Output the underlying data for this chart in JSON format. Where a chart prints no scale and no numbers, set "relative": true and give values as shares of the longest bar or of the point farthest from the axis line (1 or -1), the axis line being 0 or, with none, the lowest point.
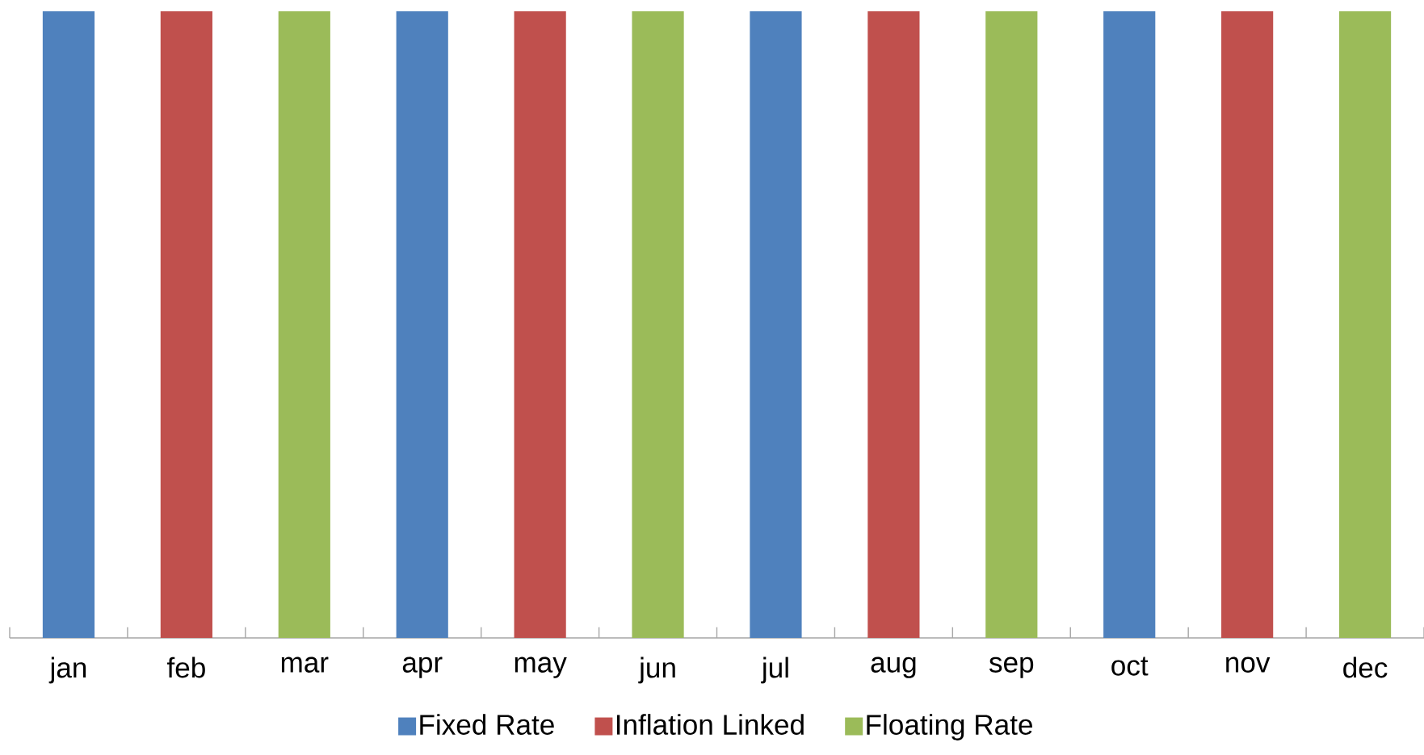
{
  "chart_data": {
    "type": "bar",
    "relative": true,
    "legend": "bottom",
    "categories": [
      "jan",
      "feb",
      "mar",
      "apr",
      "may",
      "jun",
      "jul",
      "aug",
      "sep",
      "oct",
      "nov",
      "dec"
    ],
    "series": [
      {
        "name": "Fixed Rate",
        "color": "#4f81bd",
        "values": [
          1,
          null,
          null,
          1,
          null,
          null,
          1,
          null,
          null,
          1,
          null,
          null
        ]
      },
      {
        "name": "Inflation Linked",
        "color": "#c0504d",
        "values": [
          null,
          1,
          null,
          null,
          1,
          null,
          null,
          1,
          null,
          null,
          1,
          null
        ]
      },
      {
        "name": "Floating Rate",
        "color": "#9bbb59",
        "values": [
          null,
          null,
          1,
          null,
          null,
          1,
          null,
          null,
          1,
          null,
          null,
          1
        ]
      }
    ]
  }
}
